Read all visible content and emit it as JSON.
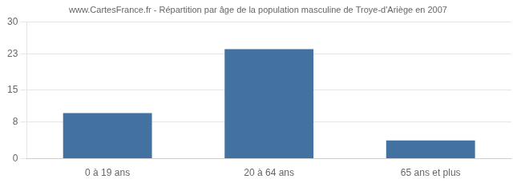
{
  "chart_data": {
    "type": "bar",
    "title": "www.CartesFrance.fr - Répartition par âge de la population masculine de Troye-d'Ariège en 2007",
    "categories": [
      "0 à 19 ans",
      "20 à 64 ans",
      "65 ans et plus"
    ],
    "values": [
      10,
      24,
      4
    ],
    "color": "#4472a0",
    "ylim": [
      0,
      30
    ],
    "yticks": [
      0,
      8,
      15,
      23,
      30
    ],
    "grid": true
  }
}
